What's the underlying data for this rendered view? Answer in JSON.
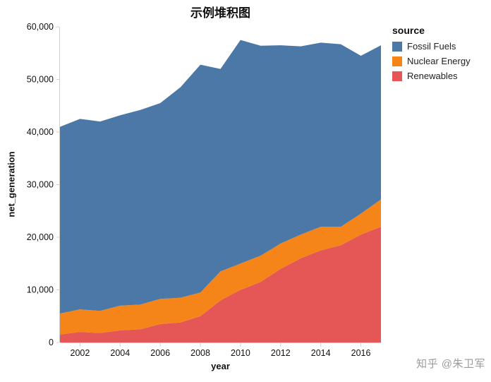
{
  "title": "示例堆积图",
  "watermark": "知乎 @朱卫军",
  "chart_data": {
    "type": "area",
    "stacked": true,
    "title": "示例堆积图",
    "xlabel": "year",
    "ylabel": "net_generation",
    "legend_title": "source",
    "legend_position": "right",
    "grid": false,
    "xlim": [
      2001,
      2017
    ],
    "ylim": [
      0,
      60000
    ],
    "x": [
      2001,
      2002,
      2003,
      2004,
      2005,
      2006,
      2007,
      2008,
      2009,
      2010,
      2011,
      2012,
      2013,
      2014,
      2015,
      2016,
      2017
    ],
    "series": [
      {
        "name": "Fossil Fuels",
        "color": "#4c78a8",
        "values": [
          35500,
          36200,
          36000,
          36200,
          37000,
          37200,
          40000,
          43300,
          38500,
          42500,
          39900,
          37700,
          35800,
          35000,
          34700,
          30000,
          29300
        ]
      },
      {
        "name": "Nuclear Energy",
        "color": "#f58518",
        "values": [
          4000,
          4300,
          4200,
          4700,
          4700,
          4800,
          4700,
          4500,
          5500,
          5000,
          5000,
          4800,
          4500,
          4500,
          3500,
          4000,
          5200
        ]
      },
      {
        "name": "Renewables",
        "color": "#e45756",
        "values": [
          1500,
          2000,
          1800,
          2300,
          2500,
          3500,
          3800,
          5000,
          8000,
          10000,
          11500,
          14000,
          16000,
          17500,
          18500,
          20500,
          22000
        ]
      }
    ],
    "stack_order_bottom_to_top": [
      "Renewables",
      "Nuclear Energy",
      "Fossil Fuels"
    ],
    "yticks": [
      0,
      10000,
      20000,
      30000,
      40000,
      50000,
      60000
    ],
    "ytick_labels": [
      "0",
      "10,000",
      "20,000",
      "30,000",
      "40,000",
      "50,000",
      "60,000"
    ],
    "xticks": [
      2002,
      2004,
      2006,
      2008,
      2010,
      2012,
      2014,
      2016
    ],
    "xtick_labels": [
      "2002",
      "2004",
      "2006",
      "2008",
      "2010",
      "2012",
      "2014",
      "2016"
    ]
  }
}
